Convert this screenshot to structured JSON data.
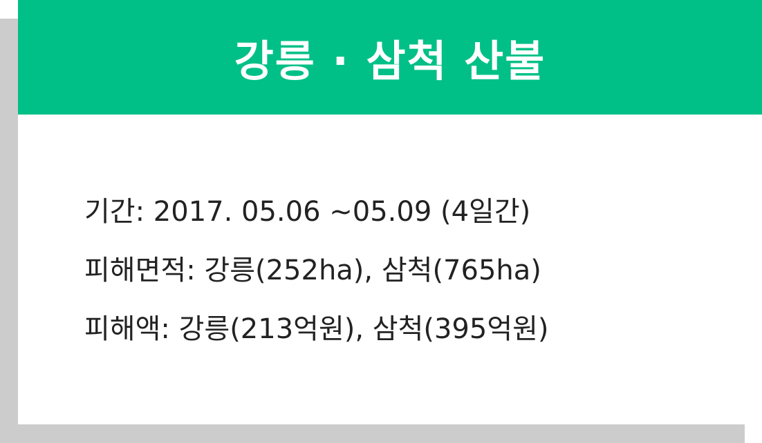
{
  "colors": {
    "accent": "#00c087",
    "shadow": "#cccccc",
    "text": "#222222"
  },
  "card": {
    "title": "강릉 · 삼척 산불",
    "lines": [
      "기간: 2017. 05.06 ~05.09 (4일간)",
      "피해면적: 강릉(252ha), 삼척(765ha)",
      "피해액: 강릉(213억원), 삼척(395억원)"
    ]
  }
}
